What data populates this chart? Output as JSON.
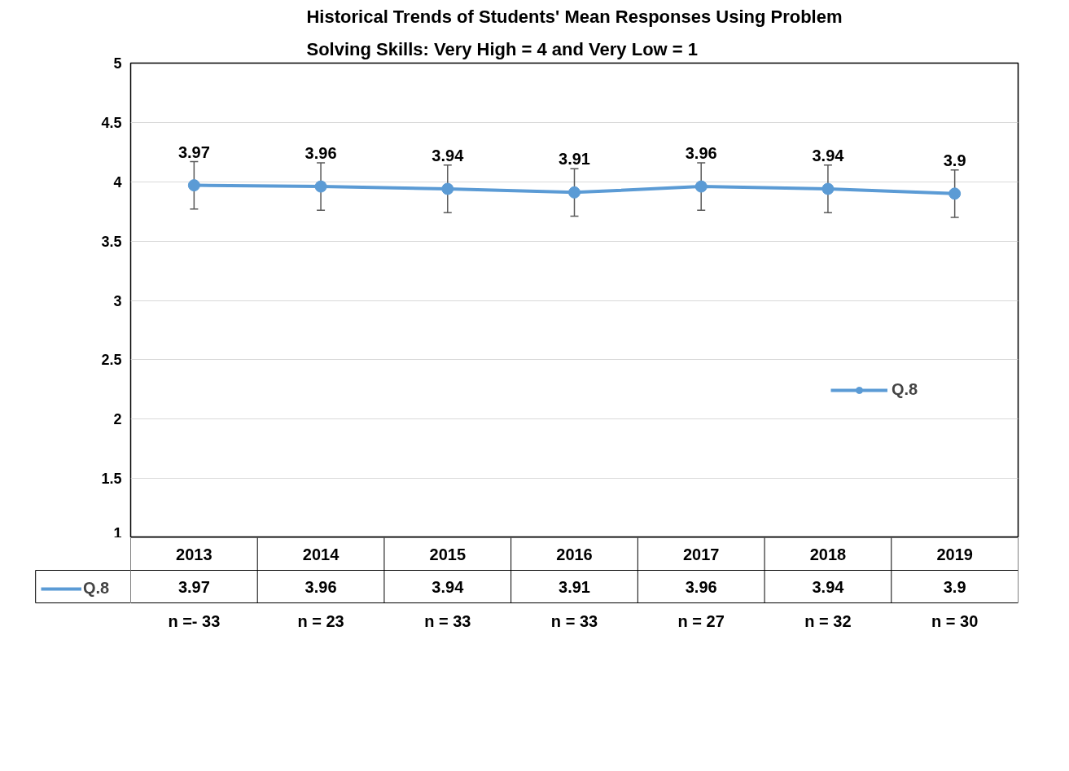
{
  "chart_data": {
    "type": "line",
    "title": "Historical Trends of Students' Mean Responses Using Problem Solving Skills: Very High = 4 and Very Low = 1",
    "categories": [
      "2013",
      "2014",
      "2015",
      "2016",
      "2017",
      "2018",
      "2019"
    ],
    "series": [
      {
        "name": "Q.8",
        "color": "#5b9bd5",
        "values": [
          3.97,
          3.96,
          3.94,
          3.91,
          3.96,
          3.94,
          3.9
        ],
        "errors": [
          0.2,
          0.2,
          0.2,
          0.2,
          0.2,
          0.2,
          0.2
        ],
        "value_labels": [
          "3.97",
          "3.96",
          "3.94",
          "3.91",
          "3.96",
          "3.94",
          "3.9"
        ]
      }
    ],
    "ylim": [
      1,
      5
    ],
    "yticks": [
      1,
      1.5,
      2,
      2.5,
      3,
      3.5,
      4,
      4.5,
      5
    ],
    "grid": "y",
    "legend": "right",
    "marker": "circle",
    "line_style": "solid",
    "data_labels": true,
    "annotations": [
      "n =- 33",
      "n = 23",
      "n = 33",
      "n = 33",
      "n = 27",
      "n = 32",
      "n = 30"
    ]
  }
}
